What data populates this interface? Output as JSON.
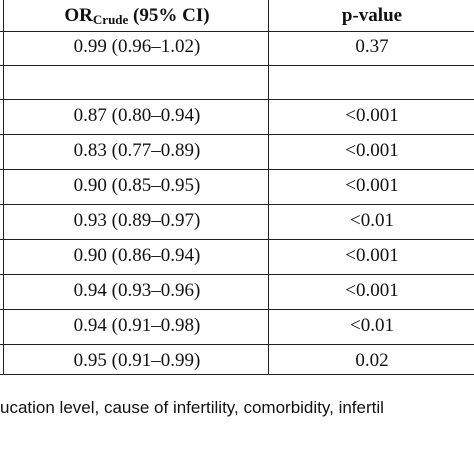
{
  "table": {
    "header": {
      "or_main": "OR",
      "or_sub": "Crude",
      "or_rest": " (95% CI)",
      "p_value": "p-value"
    },
    "rows": [
      {
        "or": "0.99 (0.96–1.02)",
        "p": "0.37"
      },
      {
        "or": "",
        "p": ""
      },
      {
        "or": "0.87 (0.80–0.94)",
        "p": "<0.001"
      },
      {
        "or": "0.83 (0.77–0.89)",
        "p": "<0.001"
      },
      {
        "or": "0.90 (0.85–0.95)",
        "p": "<0.001"
      },
      {
        "or": "0.93 (0.89–0.97)",
        "p": "<0.01"
      },
      {
        "or": "0.90 (0.86–0.94)",
        "p": "<0.001"
      },
      {
        "or": "0.94 (0.93–0.96)",
        "p": "<0.001"
      },
      {
        "or": "0.94 (0.91–0.98)",
        "p": "<0.01"
      },
      {
        "or": "0.95 (0.91–0.99)",
        "p": "0.02"
      }
    ]
  },
  "footnote": "ucation level, cause of infertility, comorbidity, infertil"
}
